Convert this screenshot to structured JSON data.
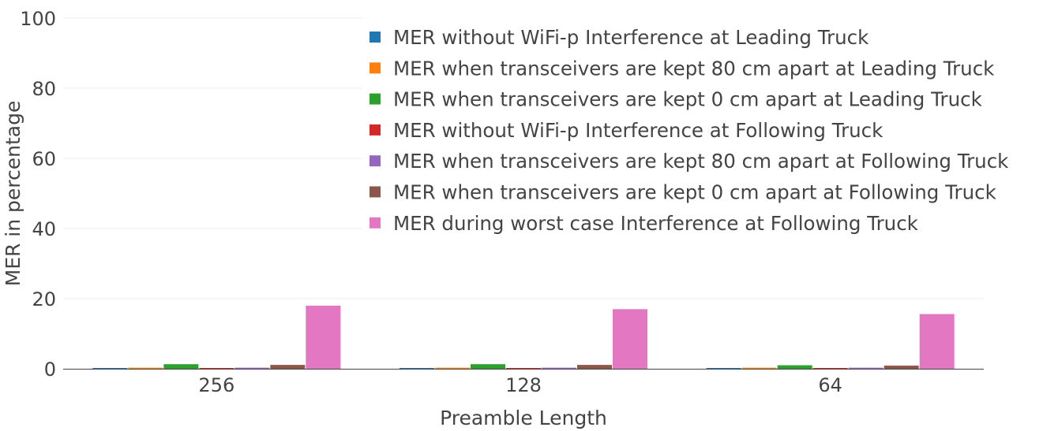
{
  "chart_data": {
    "type": "bar",
    "title": "",
    "xlabel": "Preamble Length",
    "ylabel": "MER in percentage",
    "categories": [
      "256",
      "128",
      "64"
    ],
    "yticks": [
      0,
      20,
      40,
      60,
      80,
      100
    ],
    "ylim": [
      0,
      100
    ],
    "grid": true,
    "legend_position": "top-right",
    "series": [
      {
        "name": "MER without WiFi-p Interference at Leading Truck",
        "color": "#1f77b4",
        "values": [
          0.2,
          0.2,
          0.2
        ]
      },
      {
        "name": "MER when transceivers are kept 80 cm apart at Leading Truck",
        "color": "#ff7f0e",
        "values": [
          0.3,
          0.3,
          0.3
        ]
      },
      {
        "name": "MER when transceivers are kept 0 cm apart at Leading Truck",
        "color": "#2ca02c",
        "values": [
          1.3,
          1.3,
          1.0
        ]
      },
      {
        "name": "MER without WiFi-p Interference at Following Truck",
        "color": "#d62728",
        "values": [
          0.2,
          0.2,
          0.2
        ]
      },
      {
        "name": "MER when transceivers are kept 80 cm apart at Following Truck",
        "color": "#9467bd",
        "values": [
          0.3,
          0.3,
          0.3
        ]
      },
      {
        "name": "MER when transceivers are kept 0 cm apart at Following Truck",
        "color": "#8c564b",
        "values": [
          1.1,
          1.1,
          0.9
        ]
      },
      {
        "name": "MER during worst case Interference at Following Truck",
        "color": "#e377c2",
        "values": [
          18,
          17,
          15.6
        ]
      }
    ]
  }
}
